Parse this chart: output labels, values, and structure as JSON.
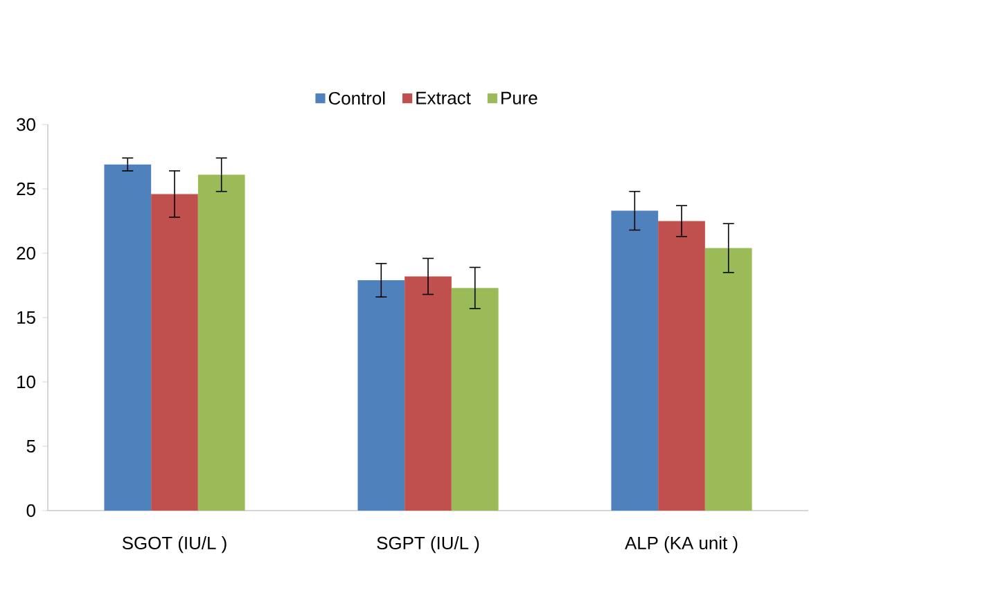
{
  "chart_data": {
    "type": "bar",
    "categories": [
      "SGOT (IU/L )",
      "SGPT (IU/L )",
      "ALP (KA unit )"
    ],
    "series": [
      {
        "name": "Control",
        "color": "#4f81bd",
        "values": [
          26.9,
          17.9,
          23.3
        ],
        "errors": [
          0.5,
          1.3,
          1.5
        ]
      },
      {
        "name": "Extract",
        "color": "#c0504d",
        "values": [
          24.6,
          18.2,
          22.5
        ],
        "errors": [
          1.8,
          1.4,
          1.2
        ]
      },
      {
        "name": "Pure",
        "color": "#9bbb59",
        "values": [
          26.1,
          17.3,
          20.4
        ],
        "errors": [
          1.3,
          1.6,
          1.9
        ]
      }
    ],
    "ylim": [
      0,
      30
    ],
    "yticks": [
      0,
      5,
      10,
      15,
      20,
      25,
      30
    ],
    "grid": false,
    "legend": "top"
  }
}
